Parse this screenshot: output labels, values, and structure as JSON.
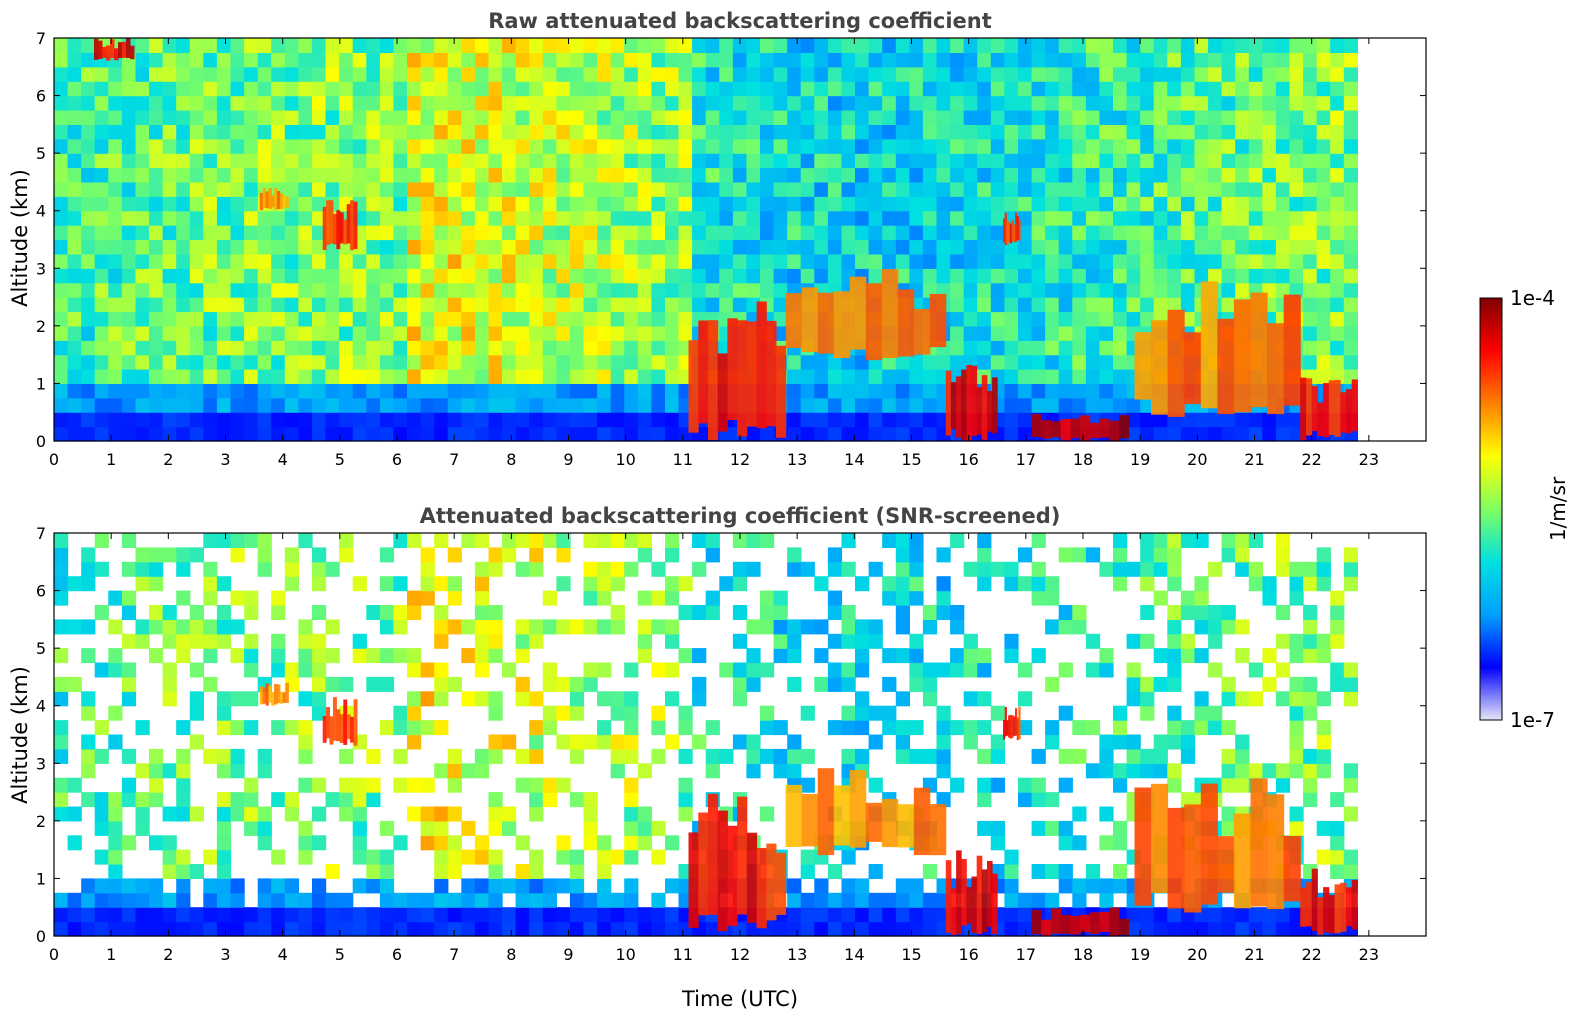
{
  "chart_data": [
    {
      "type": "heatmap",
      "title": "Raw attenuated backscattering coefficient",
      "xlabel": "",
      "ylabel": "Altitude (km)",
      "xlim": [
        0,
        24
      ],
      "ylim": [
        0,
        7
      ],
      "xticks": [
        "0",
        "1",
        "2",
        "3",
        "4",
        "5",
        "6",
        "7",
        "8",
        "9",
        "10",
        "11",
        "12",
        "13",
        "14",
        "15",
        "16",
        "17",
        "18",
        "19",
        "20",
        "21",
        "22",
        "23"
      ],
      "yticks": [
        "0",
        "1",
        "2",
        "3",
        "4",
        "5",
        "6",
        "7"
      ],
      "data_end_time": 22.8,
      "features": [
        {
          "t0": 0.7,
          "t1": 1.4,
          "z0": 6.6,
          "z1": 7.0,
          "level": 0.95
        },
        {
          "t0": 4.7,
          "t1": 5.3,
          "z0": 3.3,
          "z1": 4.2,
          "level": 0.88
        },
        {
          "t0": 3.6,
          "t1": 4.1,
          "z0": 4.0,
          "z1": 4.4,
          "level": 0.8
        },
        {
          "t0": 11.1,
          "t1": 12.8,
          "z0": 0.0,
          "z1": 2.5,
          "level": 0.92
        },
        {
          "t0": 12.8,
          "t1": 15.6,
          "z0": 1.4,
          "z1": 3.0,
          "level": 0.8
        },
        {
          "t0": 15.6,
          "t1": 16.5,
          "z0": 0.0,
          "z1": 1.5,
          "level": 0.95
        },
        {
          "t0": 16.6,
          "t1": 16.9,
          "z0": 3.4,
          "z1": 4.0,
          "level": 0.9
        },
        {
          "t0": 17.1,
          "t1": 18.8,
          "z0": 0.0,
          "z1": 0.5,
          "level": 1.0
        },
        {
          "t0": 18.9,
          "t1": 21.8,
          "z0": 0.4,
          "z1": 2.8,
          "level": 0.82
        },
        {
          "t0": 21.8,
          "t1": 22.8,
          "z0": 0.0,
          "z1": 1.2,
          "level": 0.93
        }
      ]
    },
    {
      "type": "heatmap",
      "title": "Attenuated backscattering coefficient (SNR-screened)",
      "xlabel": "Time (UTC)",
      "ylabel": "Altitude (km)",
      "xlim": [
        0,
        24
      ],
      "ylim": [
        0,
        7
      ],
      "xticks": [
        "0",
        "1",
        "2",
        "3",
        "4",
        "5",
        "6",
        "7",
        "8",
        "9",
        "10",
        "11",
        "12",
        "13",
        "14",
        "15",
        "16",
        "17",
        "18",
        "19",
        "20",
        "21",
        "22",
        "23"
      ],
      "yticks": [
        "0",
        "1",
        "2",
        "3",
        "4",
        "5",
        "6",
        "7"
      ],
      "data_end_time": 22.8,
      "features": [
        {
          "t0": 4.7,
          "t1": 5.3,
          "z0": 3.3,
          "z1": 4.2,
          "level": 0.88
        },
        {
          "t0": 3.6,
          "t1": 4.1,
          "z0": 4.0,
          "z1": 4.4,
          "level": 0.8
        },
        {
          "t0": 11.1,
          "t1": 12.8,
          "z0": 0.0,
          "z1": 2.5,
          "level": 0.92
        },
        {
          "t0": 12.8,
          "t1": 15.6,
          "z0": 1.4,
          "z1": 3.0,
          "level": 0.8
        },
        {
          "t0": 15.6,
          "t1": 16.5,
          "z0": 0.0,
          "z1": 1.5,
          "level": 0.95
        },
        {
          "t0": 16.6,
          "t1": 16.9,
          "z0": 3.4,
          "z1": 4.0,
          "level": 0.9
        },
        {
          "t0": 17.1,
          "t1": 18.8,
          "z0": 0.0,
          "z1": 0.5,
          "level": 1.0
        },
        {
          "t0": 18.9,
          "t1": 21.8,
          "z0": 0.4,
          "z1": 2.8,
          "level": 0.82
        },
        {
          "t0": 21.8,
          "t1": 22.8,
          "z0": 0.0,
          "z1": 1.2,
          "level": 0.93
        }
      ]
    }
  ],
  "colorbar": {
    "label": "1/m/sr",
    "max_label": "1e-4",
    "min_label": "1e-7",
    "colors": [
      "#e6e6f8",
      "#0000ff",
      "#00a0ff",
      "#00e0e0",
      "#80ff60",
      "#ffff00",
      "#ff8000",
      "#ff0000",
      "#800000"
    ]
  }
}
